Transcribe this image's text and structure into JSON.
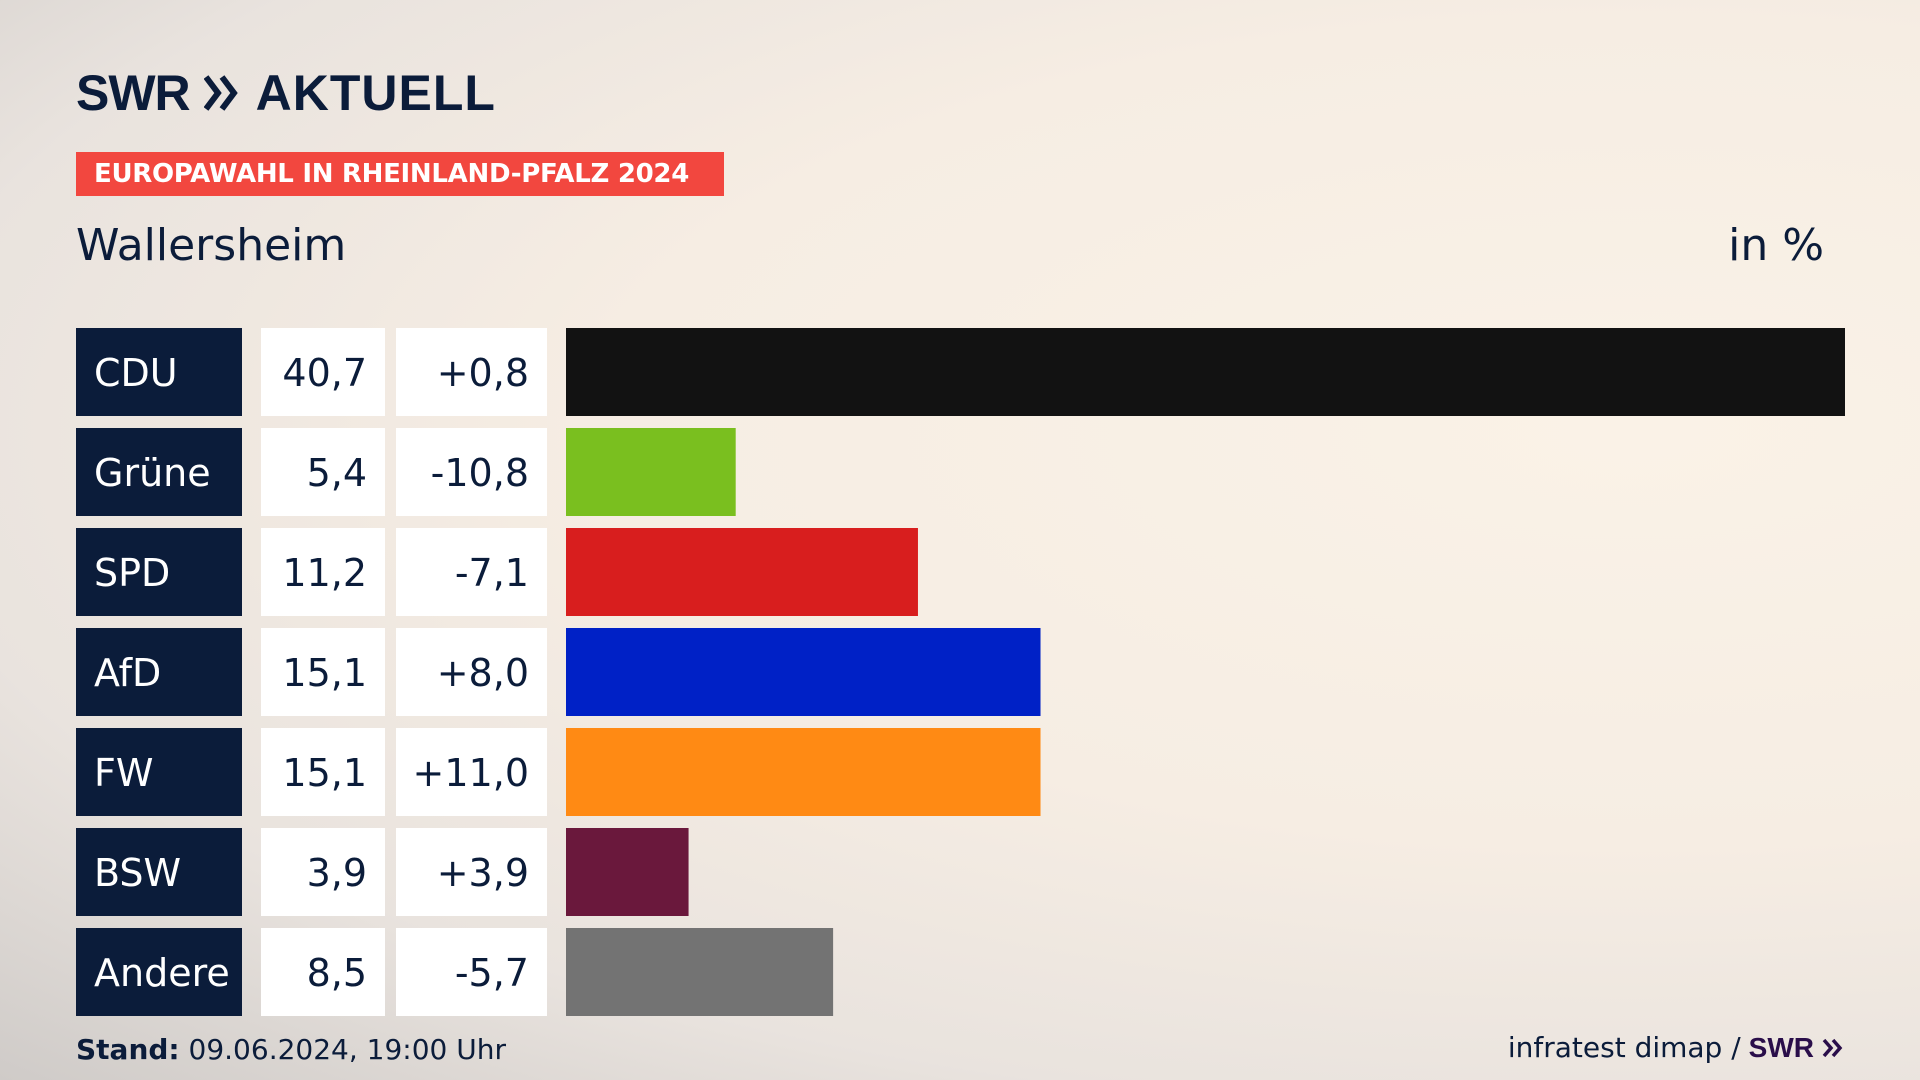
{
  "brand": {
    "logo_text": "SWR",
    "logo_subtitle": "AKTUELL",
    "logo_icon": "double-chevron-icon"
  },
  "tag": "EUROPAWAHL IN RHEINLAND-PFALZ 2024",
  "place": "Wallersheim",
  "unit": "in %",
  "footer": {
    "stand_label": "Stand:",
    "stand_value": "09.06.2024, 19:00 Uhr",
    "source": "infratest dimap /",
    "source_brand": "SWR"
  },
  "colors": {
    "label_bg": "#0b1c3a",
    "cell_bg": "#ffffff",
    "tag_bg": "#f2473f",
    "text": "#0b1c3a"
  },
  "chart_data": {
    "type": "bar",
    "orientation": "horizontal",
    "categories": [
      "CDU",
      "Grüne",
      "SPD",
      "AfD",
      "FW",
      "BSW",
      "Andere"
    ],
    "values": [
      40.7,
      5.4,
      11.2,
      15.1,
      15.1,
      3.9,
      8.5
    ],
    "value_labels": [
      "40,7",
      "5,4",
      "11,2",
      "15,1",
      "15,1",
      "3,9",
      "8,5"
    ],
    "changes": [
      0.8,
      -10.8,
      -7.1,
      8.0,
      11.0,
      3.9,
      -5.7
    ],
    "change_labels": [
      "+0,8",
      "-10,8",
      "-7,1",
      "+8,0",
      "+11,0",
      "+3,9",
      "-5,7"
    ],
    "bar_colors": [
      "#121212",
      "#7abf1f",
      "#d81e1e",
      "#0021c6",
      "#ff8a14",
      "#6a183c",
      "#737373"
    ],
    "xlim": [
      0,
      40.7
    ],
    "grid": false,
    "legend": "none"
  }
}
